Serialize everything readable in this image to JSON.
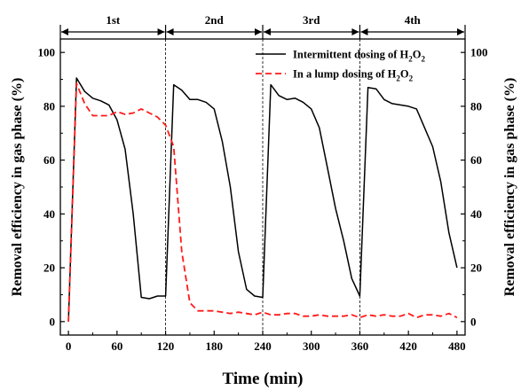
{
  "chart_data": {
    "type": "line",
    "xlabel": "Time (min)",
    "ylabel": "Removal efficiency in gas phase (%)",
    "ylabel_right": "Removal efficiency in gas phase (%)",
    "xlim": [
      -10,
      490
    ],
    "ylim": [
      -5,
      105
    ],
    "xticks": [
      0,
      60,
      120,
      180,
      240,
      300,
      360,
      420,
      480
    ],
    "yticks": [
      0,
      20,
      40,
      60,
      80,
      100
    ],
    "periods": [
      {
        "label": "1st",
        "start": -10,
        "end": 120
      },
      {
        "label": "2nd",
        "start": 120,
        "end": 240
      },
      {
        "label": "3rd",
        "start": 240,
        "end": 360
      },
      {
        "label": "4th",
        "start": 360,
        "end": 490
      }
    ],
    "dividers": [
      120,
      240,
      360
    ],
    "legend_position": "top-right",
    "series": [
      {
        "name": "Intermittent dosing of H2O2",
        "legend_text": "Intermittent dosing of H",
        "legend_sub1": "2",
        "legend_mid": "O",
        "legend_sub2": "2",
        "color": "#000000",
        "style": "solid",
        "x": [
          0,
          10,
          20,
          30,
          40,
          50,
          60,
          70,
          80,
          90,
          100,
          110,
          120,
          130,
          140,
          150,
          160,
          170,
          180,
          190,
          200,
          210,
          220,
          230,
          240,
          250,
          260,
          270,
          280,
          290,
          300,
          310,
          320,
          330,
          340,
          350,
          360,
          370,
          380,
          390,
          400,
          410,
          420,
          430,
          440,
          450,
          460,
          470,
          480
        ],
        "y": [
          0,
          90.5,
          85.5,
          83,
          82,
          80.5,
          75,
          64,
          40,
          9,
          8.5,
          9.5,
          9.5,
          88,
          86,
          82.5,
          82.5,
          81.5,
          79,
          67,
          50,
          26,
          12,
          9.5,
          9,
          88,
          84,
          82.5,
          83,
          81.5,
          79,
          72,
          57,
          42,
          30,
          16,
          9.5,
          87,
          86.5,
          82.5,
          81,
          80.5,
          80,
          79,
          72,
          65,
          52,
          33,
          20
        ]
      },
      {
        "name": "In a lump dosing of H2O2",
        "legend_text": "In a lump dosing of  H",
        "legend_sub1": "2",
        "legend_mid": "O",
        "legend_sub2": "2",
        "color": "#ff1a1a",
        "style": "dashed",
        "x": [
          0,
          10,
          20,
          30,
          40,
          50,
          60,
          70,
          80,
          90,
          100,
          110,
          120,
          130,
          140,
          150,
          160,
          170,
          180,
          190,
          200,
          210,
          220,
          230,
          240,
          250,
          260,
          270,
          280,
          290,
          300,
          310,
          320,
          330,
          340,
          350,
          360,
          370,
          380,
          390,
          400,
          410,
          420,
          430,
          440,
          450,
          460,
          470,
          480
        ],
        "y": [
          0,
          88.5,
          81,
          76.5,
          76.5,
          76.5,
          78,
          77,
          77.5,
          79,
          77.5,
          76,
          73,
          65,
          26,
          7,
          4,
          4,
          4,
          3.5,
          3,
          3.5,
          3,
          2.5,
          3.5,
          2.5,
          2.5,
          3,
          3,
          2,
          2,
          2.5,
          2,
          2,
          2,
          2.5,
          1.5,
          2.5,
          2,
          2.5,
          2,
          2,
          3,
          1.5,
          2.5,
          2.5,
          2,
          3,
          1.5
        ]
      }
    ]
  }
}
